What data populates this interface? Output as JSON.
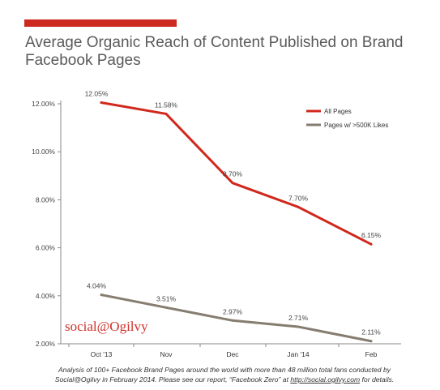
{
  "header": {
    "title": "Average Organic Reach of Content Published on Brand Facebook Pages",
    "accent_color": "#cc2a1f"
  },
  "chart_data": {
    "type": "line",
    "title": "Average Organic Reach of Content Published on Brand Facebook Pages",
    "categories": [
      "Oct '13",
      "Nov",
      "Dec",
      "Jan '14",
      "Feb"
    ],
    "ylim": [
      2,
      12
    ],
    "yticks": [
      "2.00%",
      "4.00%",
      "6.00%",
      "8.00%",
      "10.00%",
      "12.00%"
    ],
    "ytick_values": [
      2,
      4,
      6,
      8,
      10,
      12
    ],
    "grid": false,
    "legend_position": "top-right",
    "series": [
      {
        "name": "All Pages",
        "color": "#d0281c",
        "values": [
          12.05,
          11.58,
          8.7,
          7.7,
          6.15
        ],
        "labels": [
          "12.05%",
          "11.58%",
          "8.70%",
          "7.70%",
          "6.15%"
        ]
      },
      {
        "name": "Pages w/ >500K Likes",
        "color": "#867d71",
        "values": [
          4.04,
          3.51,
          2.97,
          2.71,
          2.11
        ],
        "labels": [
          "4.04%",
          "3.51%",
          "2.97%",
          "2.71%",
          "2.11%"
        ]
      }
    ]
  },
  "branding": {
    "logo_text": "social@Ogilvy"
  },
  "footnote": {
    "line1": "Analysis of 100+ Facebook Brand Pages around the world with more than 48 million total fans conducted by",
    "line2_before": "Social@Ogilvy in February 2014. Please see our report, “Facebook Zero” at ",
    "link": "http://social.ogilvy.com",
    "line2_after": " for details."
  }
}
